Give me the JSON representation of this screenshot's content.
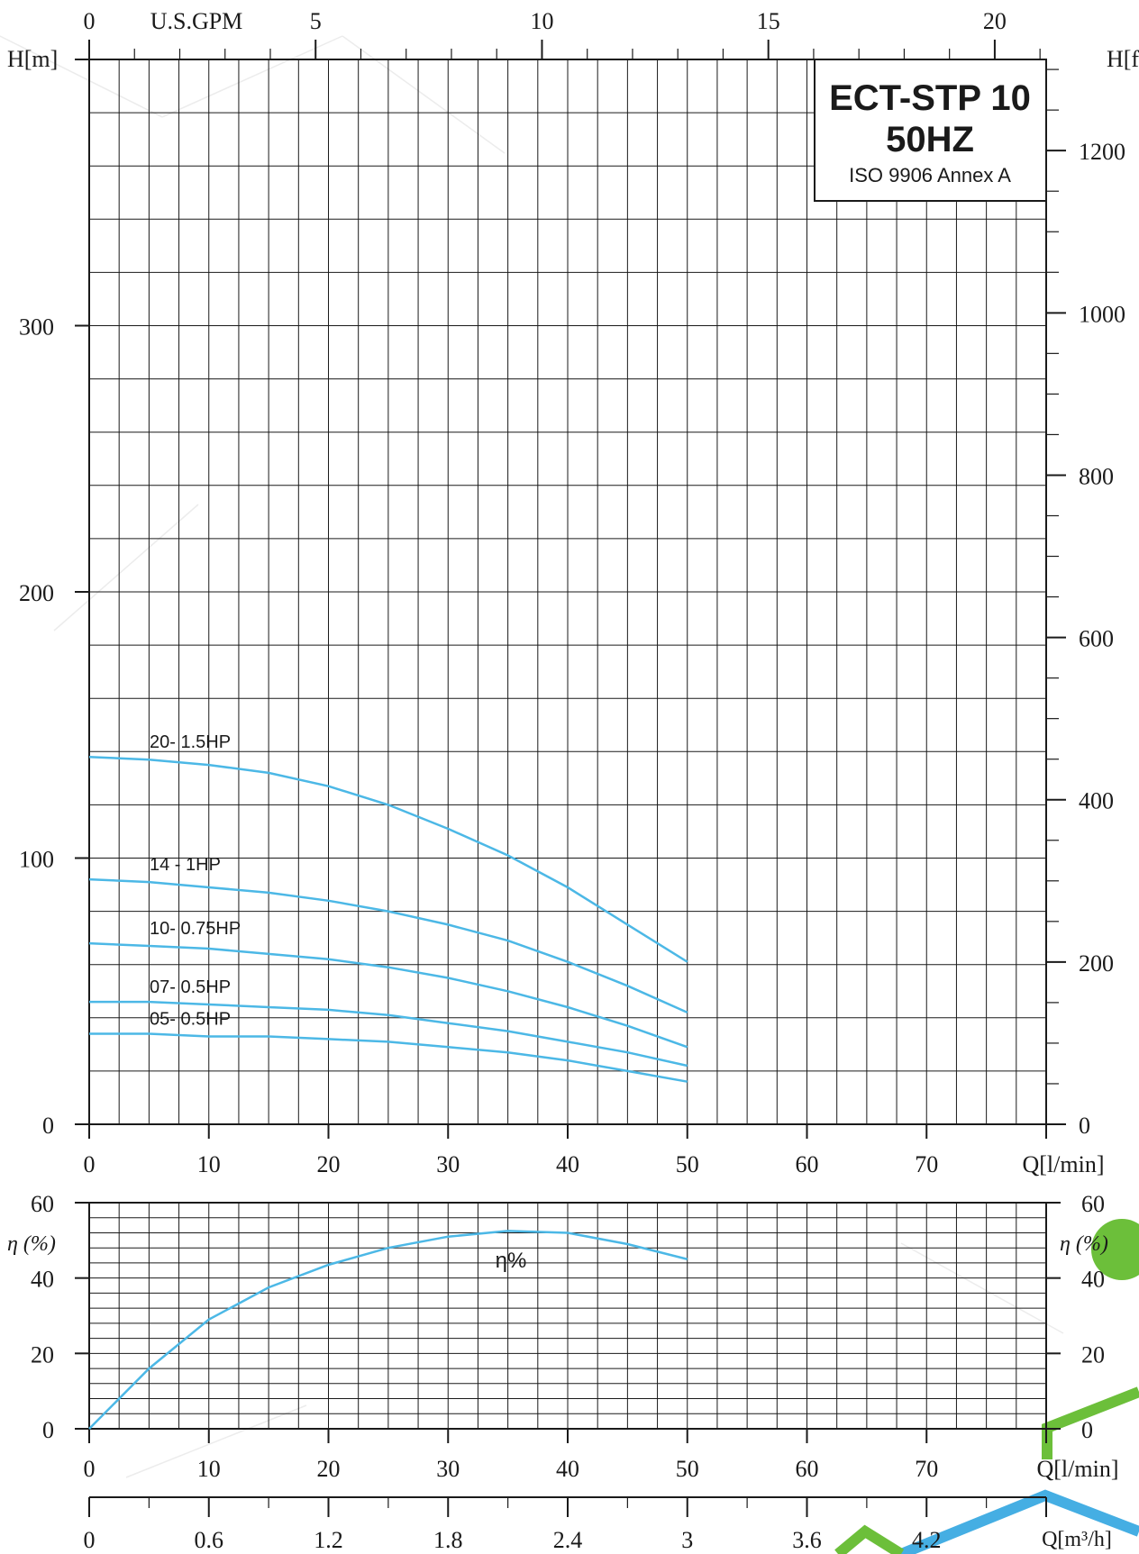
{
  "chart_data": [
    {
      "type": "line",
      "title": "ECT-STP 10",
      "subtitle": "50HZ",
      "note": "ISO 9906 Annex A",
      "xlabel": "Q[l/min]",
      "ylabel": "H[m]",
      "ylabel_right": "H[ft]",
      "xlabel_top": "U.S.GPM",
      "xlim": [
        0,
        80
      ],
      "ylim": [
        0,
        400
      ],
      "x_ticks": [
        "0",
        "10",
        "20",
        "30",
        "40",
        "50",
        "60",
        "70"
      ],
      "y_ticks": [
        "0",
        "100",
        "200",
        "300"
      ],
      "y_ticks_right": [
        "0",
        "200",
        "400",
        "600",
        "800",
        "1000",
        "1200"
      ],
      "top_ticks": [
        "0",
        "5",
        "10",
        "15",
        "20"
      ],
      "grid": true,
      "series": [
        {
          "name": "20- 1.5HP",
          "x": [
            0,
            5,
            10,
            15,
            20,
            25,
            30,
            35,
            40,
            45,
            50
          ],
          "y": [
            138,
            137,
            135,
            132,
            127,
            120,
            111,
            101,
            89,
            75,
            61
          ]
        },
        {
          "name": "14 - 1HP",
          "x": [
            0,
            5,
            10,
            15,
            20,
            25,
            30,
            35,
            40,
            45,
            50
          ],
          "y": [
            92,
            91,
            89,
            87,
            84,
            80,
            75,
            69,
            61,
            52,
            42
          ]
        },
        {
          "name": "10- 0.75HP",
          "x": [
            0,
            5,
            10,
            15,
            20,
            25,
            30,
            35,
            40,
            45,
            50
          ],
          "y": [
            68,
            67,
            66,
            64,
            62,
            59,
            55,
            50,
            44,
            37,
            29
          ]
        },
        {
          "name": "07- 0.5HP",
          "x": [
            0,
            5,
            10,
            15,
            20,
            25,
            30,
            35,
            40,
            45,
            50
          ],
          "y": [
            46,
            46,
            45,
            44,
            43,
            41,
            38,
            35,
            31,
            27,
            22
          ]
        },
        {
          "name": "05- 0.5HP",
          "x": [
            0,
            5,
            10,
            15,
            20,
            25,
            30,
            35,
            40,
            45,
            50
          ],
          "y": [
            34,
            34,
            33,
            33,
            32,
            31,
            29,
            27,
            24,
            20,
            16
          ]
        }
      ]
    },
    {
      "type": "line",
      "xlabel": "Q[l/min]",
      "xlabel_bottom": "Q[m³/h]",
      "ylabel": "η (%)",
      "ylabel_right": "η (%)",
      "xlim": [
        0,
        80
      ],
      "ylim": [
        0,
        60
      ],
      "x_ticks": [
        "0",
        "10",
        "20",
        "30",
        "40",
        "50",
        "60",
        "70"
      ],
      "y_ticks": [
        "0",
        "20",
        "40",
        "60"
      ],
      "y_ticks_right": [
        "0",
        "20",
        "40",
        "60"
      ],
      "m3h_ticks": [
        "0",
        "0.6",
        "1.2",
        "1.8",
        "2.4",
        "3",
        "3.6",
        "4.2"
      ],
      "grid": true,
      "series": [
        {
          "name": "η%",
          "x": [
            0,
            5,
            10,
            15,
            20,
            25,
            30,
            35,
            40,
            45,
            50
          ],
          "y": [
            0,
            16,
            29,
            37.5,
            43.5,
            48,
            51,
            52.5,
            52,
            49,
            45
          ]
        }
      ]
    }
  ],
  "colors": {
    "curve": "#4cb8e6",
    "grid": "#1a1a1a",
    "text": "#1a1a1a",
    "deco_green": "#6cbf3a",
    "deco_blue": "#45aee3"
  }
}
